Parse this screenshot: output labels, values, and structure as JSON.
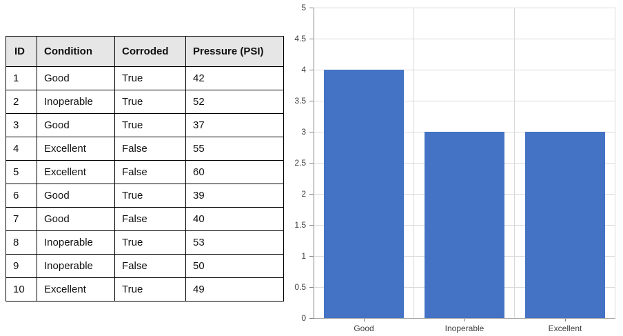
{
  "table": {
    "headers": [
      "ID",
      "Condition",
      "Corroded",
      "Pressure (PSI)"
    ],
    "rows": [
      [
        "1",
        "Good",
        "True",
        "42"
      ],
      [
        "2",
        "Inoperable",
        "True",
        "52"
      ],
      [
        "3",
        "Good",
        "True",
        "37"
      ],
      [
        "4",
        "Excellent",
        "False",
        "55"
      ],
      [
        "5",
        "Excellent",
        "False",
        "60"
      ],
      [
        "6",
        "Good",
        "True",
        "39"
      ],
      [
        "7",
        "Good",
        "False",
        "40"
      ],
      [
        "8",
        "Inoperable",
        "True",
        "53"
      ],
      [
        "9",
        "Inoperable",
        "False",
        "50"
      ],
      [
        "10",
        "Excellent",
        "True",
        "49"
      ]
    ]
  },
  "chart_data": {
    "type": "bar",
    "categories": [
      "Good",
      "Inoperable",
      "Excellent"
    ],
    "values": [
      4,
      3,
      3
    ],
    "title": "",
    "xlabel": "",
    "ylabel": "",
    "ylim": [
      0,
      5
    ],
    "yticks": [
      0,
      0.5,
      1,
      1.5,
      2,
      2.5,
      3,
      3.5,
      4,
      4.5,
      5
    ],
    "grid": true,
    "legend": "none",
    "bar_color": "#4472C4",
    "gridline_color": "#D9D9D9",
    "axis_color": "#7F7F7F",
    "tick_label_color": "#404040"
  },
  "colors": {
    "table_header_bg": "#E7E6E6",
    "table_border": "#000000",
    "background": "#FFFFFF"
  }
}
